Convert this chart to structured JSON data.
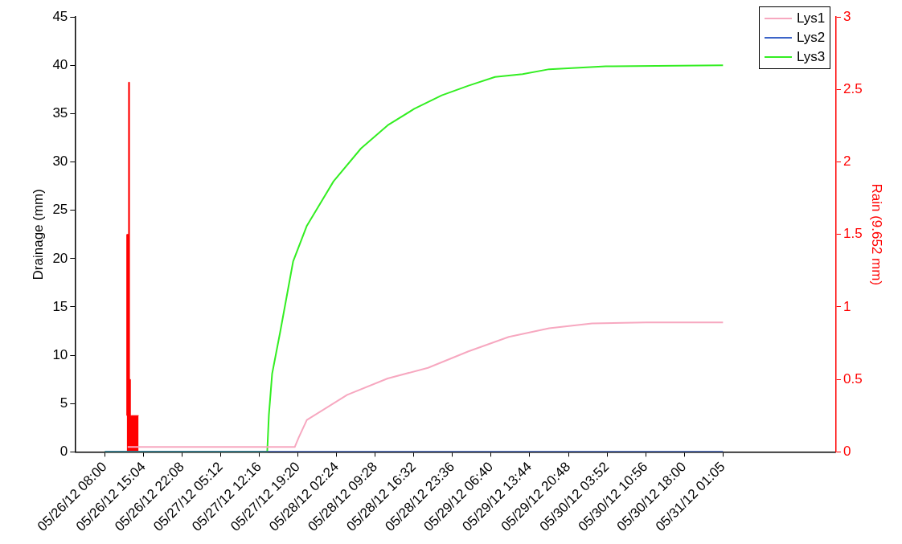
{
  "chart_data": {
    "type": "line",
    "ylabel": "Drainage (mm)",
    "y2label": "Rain (9.652 mm)",
    "legend": "top right",
    "xlim": [
      "--05-26T02:32",
      "--05-31T21:46"
    ],
    "xticks": [
      {
        "value": "--05-26T08:00",
        "label": "05/26/12 08:00"
      },
      {
        "value": "--05-26T15:04",
        "label": "05/26/12 15:04"
      },
      {
        "value": "--05-26T22:08",
        "label": "05/26/12 22:08"
      },
      {
        "value": "--05-27T05:12",
        "label": "05/27/12 05:12"
      },
      {
        "value": "--05-27T12:16",
        "label": "05/27/12 12:16"
      },
      {
        "value": "--05-27T19:20",
        "label": "05/27/12 19:20"
      },
      {
        "value": "--05-28T02:24",
        "label": "05/28/12 02:24"
      },
      {
        "value": "--05-28T09:28",
        "label": "05/28/12 09:28"
      },
      {
        "value": "--05-28T16:32",
        "label": "05/28/12 16:32"
      },
      {
        "value": "--05-28T23:36",
        "label": "05/28/12 23:36"
      },
      {
        "value": "--05-29T06:40",
        "label": "05/29/12 06:40"
      },
      {
        "value": "--05-29T13:44",
        "label": "05/29/12 13:44"
      },
      {
        "value": "--05-29T20:48",
        "label": "05/29/12 20:48"
      },
      {
        "value": "--05-30T03:52",
        "label": "05/30/12 03:52"
      },
      {
        "value": "--05-30T10:56",
        "label": "05/30/12 10:56"
      },
      {
        "value": "--05-30T18:00",
        "label": "05/30/12 18:00"
      },
      {
        "value": "--05-31T01:05",
        "label": "05/31/12 01:05"
      }
    ],
    "ylim": [
      0,
      45
    ],
    "yticks": [
      0,
      5,
      10,
      15,
      20,
      25,
      30,
      35,
      40,
      45
    ],
    "y2lim": [
      0,
      3
    ],
    "y2ticks": [
      0,
      0.5,
      1,
      1.5,
      2,
      2.5,
      3
    ],
    "series": [
      {
        "type": "area",
        "axis": "y2",
        "color": "#ff0000",
        "x": [
          "--05-26T12:00",
          "--05-26T12:20",
          "--05-26T12:30",
          "--05-26T12:40",
          "--05-26T12:50",
          "--05-26T14:10"
        ],
        "values": [
          0.25,
          1.5,
          2.55,
          0.5,
          0.25,
          0.25
        ]
      },
      {
        "type": "line",
        "name": "Lys1",
        "color": "#f7a8c0",
        "x": [
          "--05-26T12:10",
          "--05-27T18:44",
          "--05-27T19:28",
          "--05-27T20:57",
          "--05-28T04:20",
          "--05-28T11:44",
          "--05-28T19:07",
          "--05-29T02:31",
          "--05-29T09:54",
          "--05-29T17:17",
          "--05-30T01:07",
          "--05-30T11:02",
          "--05-31T01:05"
        ],
        "values": [
          0.5,
          0.5,
          1.5,
          3.3,
          5.9,
          7.6,
          8.7,
          10.4,
          11.9,
          12.8,
          13.3,
          13.4,
          13.4
        ]
      },
      {
        "type": "line",
        "name": "Lys2",
        "color": "#3c64c8",
        "x": [
          "--05-26T08:00",
          "--05-31T01:05"
        ],
        "values": [
          0,
          0
        ]
      },
      {
        "type": "line",
        "name": "Lys3",
        "color": "#33ee22",
        "x": [
          "--05-26T08:00",
          "--05-27T13:42",
          "--05-27T14:00",
          "--05-27T14:36",
          "--05-27T16:04",
          "--05-27T18:26",
          "--05-27T20:57",
          "--05-28T01:50",
          "--05-28T06:51",
          "--05-28T11:44",
          "--05-28T16:36",
          "--05-28T21:38",
          "--05-29T02:31",
          "--05-29T07:23",
          "--05-29T12:25",
          "--05-29T17:17",
          "--05-30T03:38",
          "--05-31T01:05"
        ],
        "values": [
          0,
          0,
          3.8,
          8.1,
          12.4,
          19.7,
          23.4,
          28.0,
          31.4,
          33.8,
          35.5,
          36.9,
          37.9,
          38.8,
          39.1,
          39.6,
          39.9,
          40
        ]
      }
    ]
  }
}
